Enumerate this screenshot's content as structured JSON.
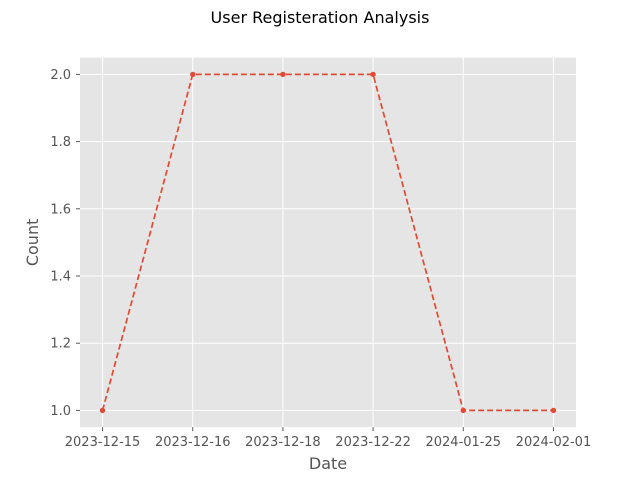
{
  "chart_data": {
    "type": "line",
    "title": "User Registeration Analysis",
    "xlabel": "Date",
    "ylabel": "Count",
    "categories": [
      "2023-12-15",
      "2023-12-16",
      "2023-12-18",
      "2023-12-22",
      "2024-01-25",
      "2024-02-01"
    ],
    "series": [
      {
        "values": [
          1,
          2,
          2,
          2,
          1,
          1
        ]
      }
    ],
    "yticks": [
      "1.0",
      "1.2",
      "1.4",
      "1.6",
      "1.8",
      "2.0"
    ],
    "ylim": [
      0.95,
      2.05
    ],
    "grid": true,
    "line_style": "dashed",
    "marker": "circle",
    "colors": {
      "line": "#E24A33",
      "plot_background": "#E5E5E5",
      "grid": "#FFFFFF"
    }
  }
}
